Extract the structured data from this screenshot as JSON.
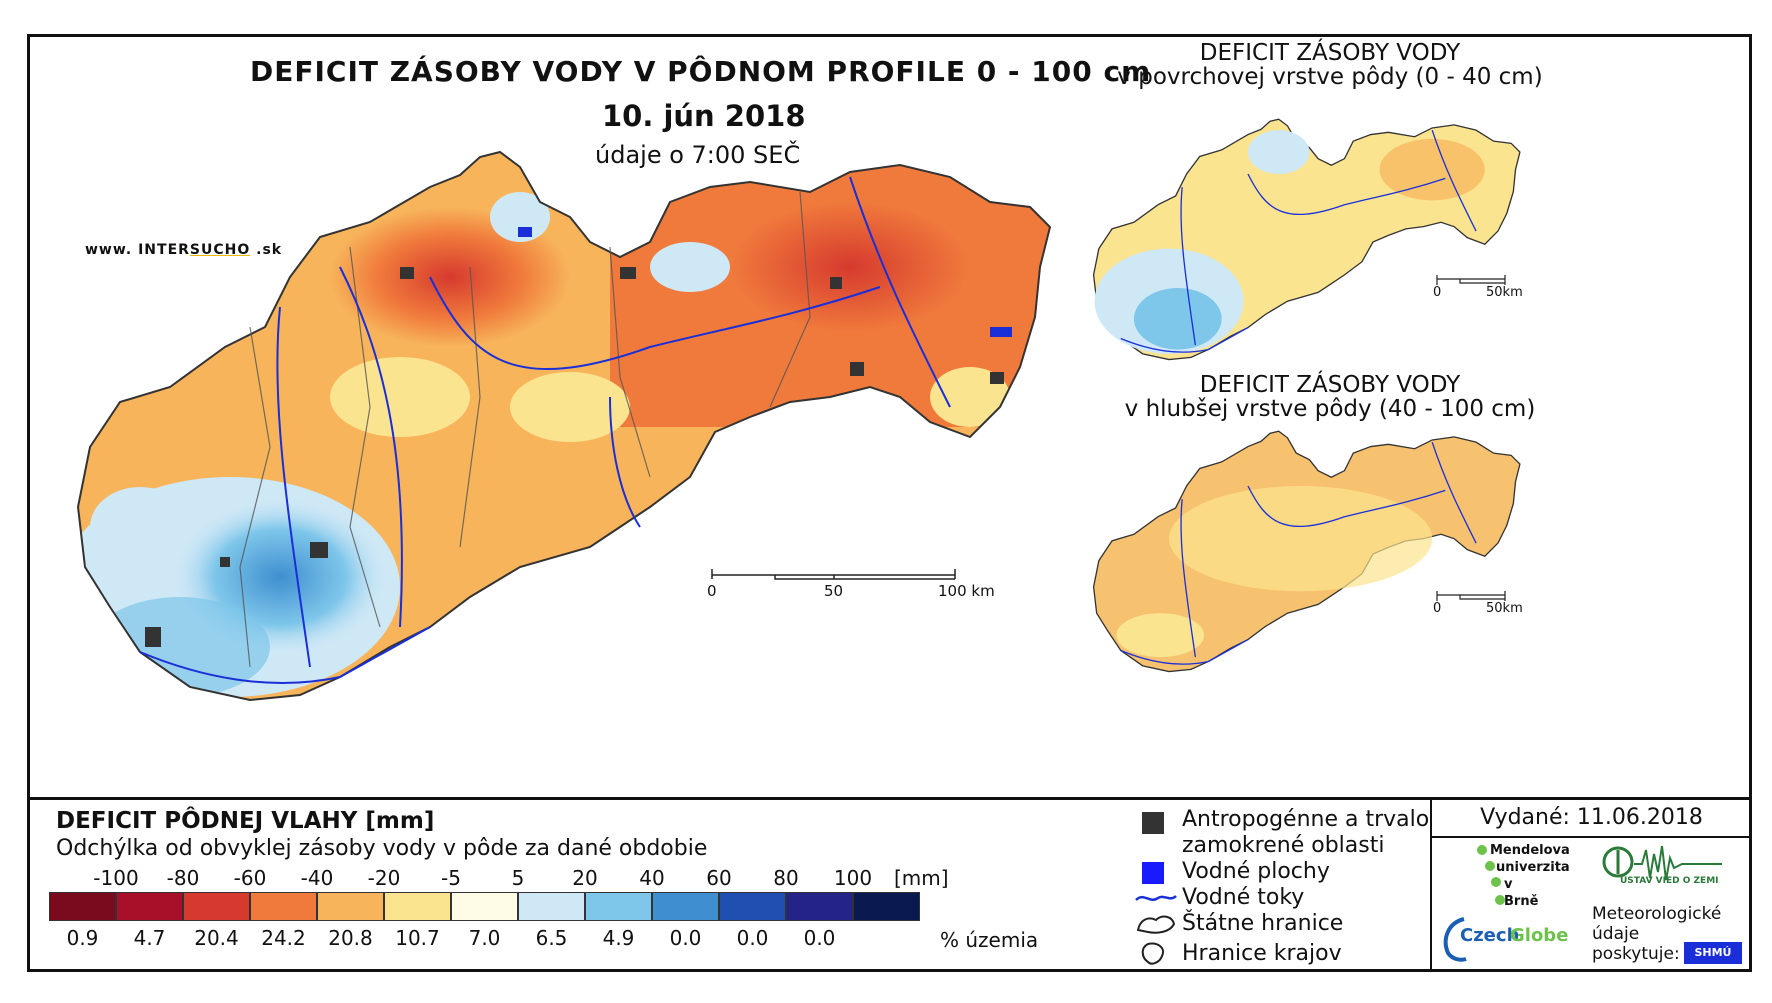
{
  "title": {
    "main": "DEFICIT ZÁSOBY VODY V PÔDNOM PROFILE 0 - 100 cm",
    "date": "10. jún 2018",
    "time": "údaje o 7:00 SEČ"
  },
  "brand": {
    "prefix": "www. INTER",
    "highlight": "SUCHO",
    "suffix": " .sk"
  },
  "inset_top": {
    "title_line1": "DEFICIT ZÁSOBY VODY",
    "title_line2": "v povrchovej vrstve pôdy (0 - 40 cm)",
    "scale_0": "0",
    "scale_end": "50km"
  },
  "inset_bottom": {
    "title_line1": "DEFICIT ZÁSOBY VODY",
    "title_line2": "v hlubšej vrstve pôdy (40 - 100 cm)",
    "scale_0": "0",
    "scale_end": "50km"
  },
  "main_scale": {
    "s0": "0",
    "s50": "50",
    "s100": "100 km"
  },
  "legend": {
    "title": "DEFICIT PÔDNEJ VLAHY [mm]",
    "subtitle": "Odchýlka od obvyklej zásoby vody v pôde za dané obdobie",
    "unit": "[mm]",
    "pct_label": "% územia",
    "boundaries": [
      "-100",
      "-80",
      "-60",
      "-40",
      "-20",
      "-5",
      "5",
      "20",
      "40",
      "60",
      "80",
      "100"
    ],
    "colors": [
      "#7a0a1e",
      "#a8102a",
      "#d63a2e",
      "#f07a3c",
      "#f7b45a",
      "#fbe48f",
      "#fefce6",
      "#cfe8f6",
      "#7ec6ea",
      "#3f8fd0",
      "#1f4fb0",
      "#23238a",
      "#0a1a50"
    ],
    "percentages": [
      "0.9",
      "4.7",
      "20.4",
      "24.2",
      "20.8",
      "10.7",
      "7.0",
      "6.5",
      "4.9",
      "0.0",
      "0.0",
      "0.0",
      ""
    ]
  },
  "symbols": {
    "anthro_line1": "Antropogénne a trvalo",
    "anthro_line2": "zamokrené oblasti",
    "water_bodies": "Vodné plochy",
    "rivers": "Vodné toky",
    "border": "Štátne hranice",
    "regions": "Hranice krajov"
  },
  "issue": {
    "date": "Vydané: 11.06.2018",
    "mendel_1": "Mendelova",
    "mendel_2": "univerzita",
    "mendel_3": "v Brně",
    "czechglobe_1": "Czech",
    "czechglobe_2": "Globe",
    "uvz": "ÚSTAV VIED O ZEMI",
    "meteo_1": "Meteorologické",
    "meteo_2": "údaje",
    "meteo_3": "poskytuje:",
    "shmu": "SHMÚ"
  }
}
